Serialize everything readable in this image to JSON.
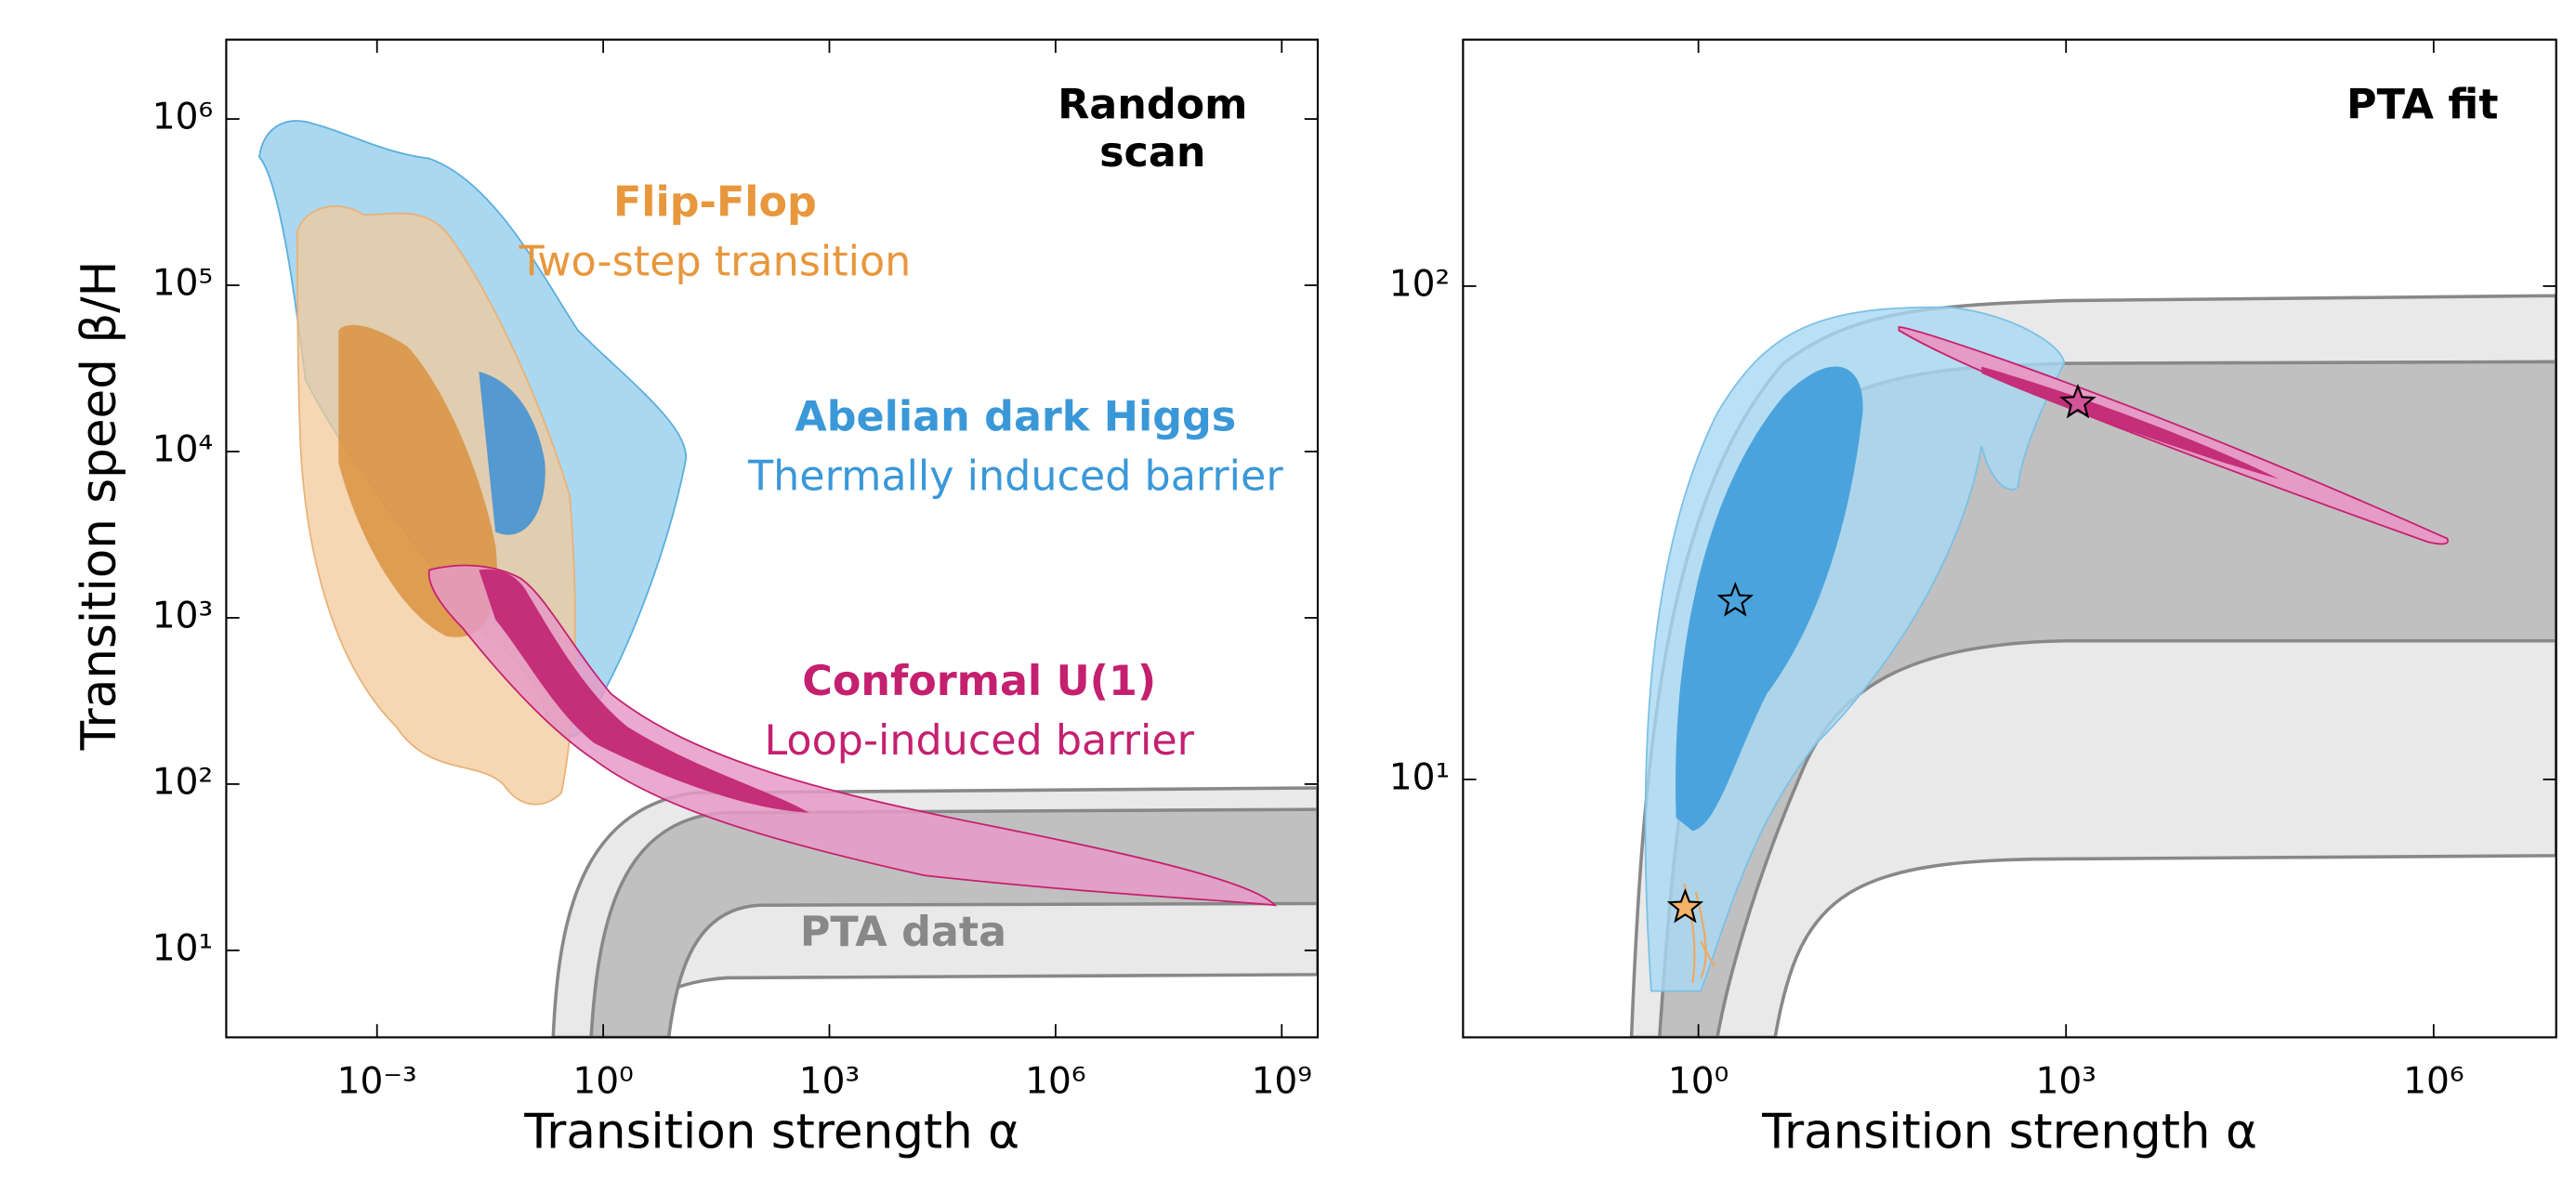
{
  "chart_data": [
    {
      "type": "contour",
      "xlabel": "Transition strength α",
      "ylabel": "Transition speed β/H",
      "xscale": "log",
      "yscale": "log",
      "xlim": [
        1e-05,
        3000000000
      ],
      "ylim": [
        3,
        3000000
      ],
      "xticks": [
        {
          "value": 0.001,
          "label": "10⁻³"
        },
        {
          "value": 1,
          "label": "10⁰"
        },
        {
          "value": 1000,
          "label": "10³"
        },
        {
          "value": 1000000,
          "label": "10⁶"
        },
        {
          "value": 1000000000,
          "label": "10⁹"
        }
      ],
      "yticks": [
        {
          "value": 10,
          "label": "10¹"
        },
        {
          "value": 100,
          "label": "10²"
        },
        {
          "value": 1000,
          "label": "10³"
        },
        {
          "value": 10000,
          "label": "10⁴"
        },
        {
          "value": 100000,
          "label": "10⁵"
        },
        {
          "value": 1000000,
          "label": "10⁶"
        }
      ],
      "annotations": [
        {
          "text": "Random",
          "color": "#000000"
        },
        {
          "text": "scan",
          "color": "#000000"
        },
        {
          "text": "Flip-Flop",
          "color": "#e8973d"
        },
        {
          "text": "Two-step transition",
          "color": "#e8973d"
        },
        {
          "text": "Abelian dark Higgs",
          "color": "#3a98d8"
        },
        {
          "text": "Thermally induced barrier",
          "color": "#3a98d8"
        },
        {
          "text": "Conformal U(1)",
          "color": "#c4206f"
        },
        {
          "text": "Loop-induced barrier",
          "color": "#c4206f"
        },
        {
          "text": "PTA data",
          "color": "#888888"
        }
      ]
    },
    {
      "type": "scatter",
      "xlabel": "Transition strength α",
      "xscale": "log",
      "yscale": "log",
      "xlim": [
        0.012,
        10000000
      ],
      "ylim": [
        3,
        316
      ],
      "xticks": [
        {
          "value": 1,
          "label": "10⁰"
        },
        {
          "value": 1000,
          "label": "10³"
        },
        {
          "value": 1000000,
          "label": "10⁶"
        }
      ],
      "yticks": [
        {
          "value": 10,
          "label": "10¹"
        },
        {
          "value": 100,
          "label": "10²"
        }
      ],
      "annotations": [
        {
          "text": "PTA fit",
          "color": "#000000"
        }
      ],
      "series": [
        {
          "color": "#f4b266",
          "x": [
            0.78
          ],
          "y": [
            5.5
          ]
        },
        {
          "color": "#4aa3dd",
          "x": [
            2
          ],
          "y": [
            23
          ]
        },
        {
          "color": "#d4549a",
          "x": [
            1250
          ],
          "y": [
            58
          ]
        }
      ]
    }
  ]
}
